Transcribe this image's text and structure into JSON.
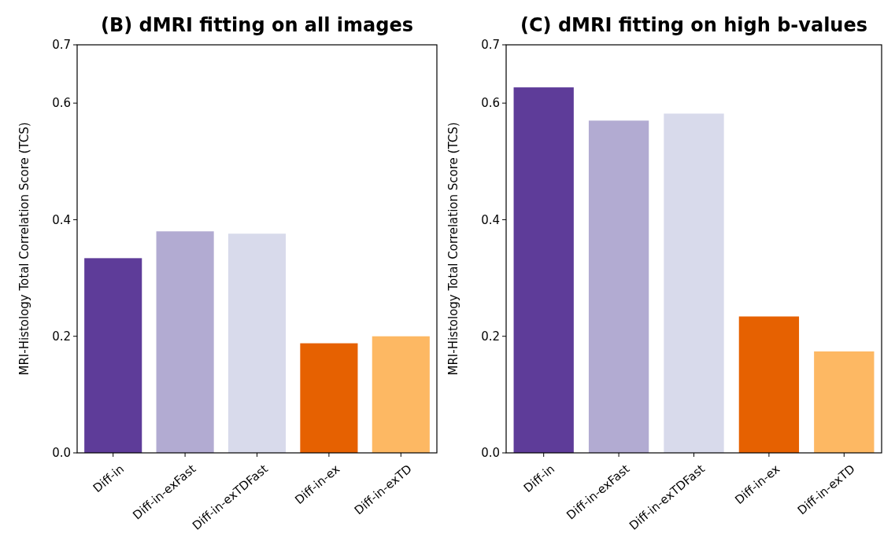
{
  "chart_data": [
    {
      "type": "bar",
      "title": "(B) dMRI fitting on all images",
      "ylabel": "MRI-Histology Total Correlation Score  (TCS)",
      "categories": [
        "Diff-in",
        "Diff-in-exFast",
        "Diff-in-exTDFast",
        "Diff-in-ex",
        "Diff-in-exTD"
      ],
      "values": [
        0.334,
        0.38,
        0.376,
        0.188,
        0.2
      ],
      "colors": [
        "#5e3c99",
        "#b2abd2",
        "#d8daeb",
        "#e66101",
        "#fdb863"
      ],
      "ylim": [
        0,
        0.7
      ],
      "yticks": [
        {
          "value": 0,
          "label": "0.0"
        },
        {
          "value": 0.2,
          "label": "0.2"
        },
        {
          "value": 0.4,
          "label": "0.4"
        },
        {
          "value": 0.6,
          "label": "0.6"
        },
        {
          "value": 0.7,
          "label": "0.7"
        }
      ],
      "grid": false
    },
    {
      "type": "bar",
      "title": "(C) dMRI fitting on high b-values",
      "ylabel": "MRI-Histology Total Correlation Score  (TCS)",
      "categories": [
        "Diff-in",
        "Diff-in-exFast",
        "Diff-in-exTDFast",
        "Diff-in-ex",
        "Diff-in-exTD"
      ],
      "values": [
        0.627,
        0.57,
        0.582,
        0.234,
        0.174
      ],
      "colors": [
        "#5e3c99",
        "#b2abd2",
        "#d8daeb",
        "#e66101",
        "#fdb863"
      ],
      "ylim": [
        0,
        0.7
      ],
      "yticks": [
        {
          "value": 0,
          "label": "0.0"
        },
        {
          "value": 0.2,
          "label": "0.2"
        },
        {
          "value": 0.4,
          "label": "0.4"
        },
        {
          "value": 0.6,
          "label": "0.6"
        },
        {
          "value": 0.7,
          "label": "0.7"
        }
      ],
      "grid": false
    }
  ]
}
